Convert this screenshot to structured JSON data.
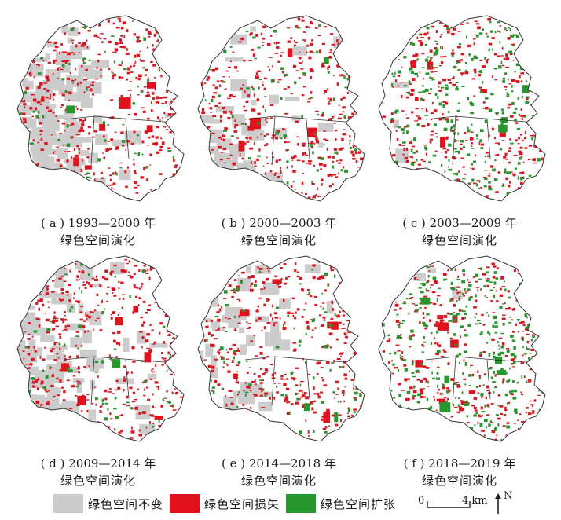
{
  "panels": [
    {
      "caption_line1": "( a )  1993—2000 年",
      "caption_line2": "绿色空间演化",
      "gray": 0.55,
      "red": 0.22,
      "green": 0.04
    },
    {
      "caption_line1": "( b )  2000—2003 年",
      "caption_line2": "绿色空间演化",
      "gray": 0.22,
      "red": 0.2,
      "green": 0.05
    },
    {
      "caption_line1": "( c )  2003—2009 年",
      "caption_line2": "绿色空间演化",
      "gray": 0.02,
      "red": 0.18,
      "green": 0.16
    },
    {
      "caption_line1": "( d )  2009—2014 年",
      "caption_line2": "绿色空间演化",
      "gray": 0.55,
      "red": 0.22,
      "green": 0.04
    },
    {
      "caption_line1": "( e )  2014—2018 年",
      "caption_line2": "绿色空间演化",
      "gray": 0.22,
      "red": 0.2,
      "green": 0.06
    },
    {
      "caption_line1": "( f )  2018—2019 年",
      "caption_line2": "绿色空间演化",
      "gray": 0.02,
      "red": 0.18,
      "green": 0.18
    }
  ],
  "legend": [
    {
      "label": "绿色空间不变",
      "color": "#cccccc"
    },
    {
      "label": "绿色空间损失",
      "color": "#e3111b"
    },
    {
      "label": "绿色空间扩张",
      "color": "#26962d"
    }
  ],
  "scale": {
    "zero": "0",
    "distance": "4 km",
    "north": "N"
  }
}
